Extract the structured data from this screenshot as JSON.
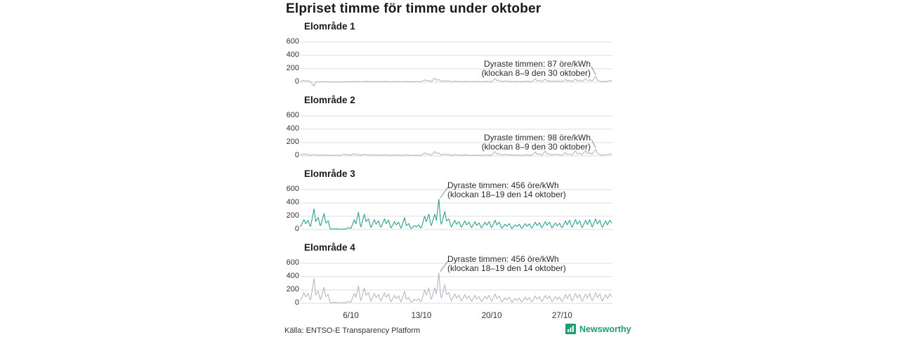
{
  "title": "Elpriset timme för timme under oktober",
  "source": "Källa: ENTSO-E Transparency Platform",
  "branding": {
    "name": "Newsworthy",
    "color": "#1b9e73"
  },
  "colors": {
    "line_gray": "#b5b7c4",
    "line_teal": "#2aa092",
    "gridline": "#dddddd",
    "tick_text": "#333333",
    "annotation_leader": "#8a8a8a",
    "title_text": "#1a1a1a"
  },
  "chart_data": {
    "type": "line",
    "title": "Elpriset timme för timme under oktober",
    "unit": "öre/kWh",
    "x_axis": "Dates in October (hourly series, hour 0 = 1 Oct 00:00)",
    "total_hours": 744,
    "xticks": [
      {
        "hour": 120,
        "label": "6/10"
      },
      {
        "hour": 288,
        "label": "13/10"
      },
      {
        "hour": 456,
        "label": "20/10"
      },
      {
        "hour": 624,
        "label": "27/10"
      }
    ],
    "yticks": [
      600,
      400,
      200,
      0
    ],
    "ylim": [
      -70,
      660
    ],
    "grid": true,
    "sample_hour_offsets": [
      0,
      8,
      12,
      18,
      22
    ],
    "panels": [
      {
        "title": "Elområde 1",
        "line_color_key": "line_gray",
        "annotation": {
          "line1": "Dyraste timmen: 87 öre/kWh",
          "line2": "(klockan 8–9 den 30 oktober)",
          "align": "right"
        },
        "peak": {
          "value": 87,
          "day": 30,
          "hour": 8
        },
        "values": [
          10,
          28,
          15,
          22,
          8,
          5,
          -60,
          2,
          5,
          3,
          3,
          8,
          5,
          6,
          4,
          2,
          5,
          4,
          5,
          3,
          3,
          6,
          5,
          8,
          4,
          4,
          10,
          6,
          8,
          5,
          5,
          12,
          8,
          10,
          5,
          4,
          10,
          7,
          9,
          5,
          5,
          12,
          8,
          10,
          6,
          4,
          10,
          6,
          8,
          5,
          5,
          10,
          7,
          9,
          5,
          4,
          8,
          6,
          8,
          4,
          8,
          35,
          20,
          25,
          10,
          12,
          60,
          30,
          40,
          15,
          10,
          25,
          15,
          20,
          8,
          6,
          15,
          10,
          12,
          6,
          5,
          12,
          8,
          10,
          5,
          5,
          10,
          7,
          9,
          5,
          5,
          12,
          8,
          10,
          6,
          10,
          55,
          25,
          30,
          12,
          8,
          20,
          12,
          15,
          8,
          5,
          12,
          8,
          10,
          6,
          6,
          15,
          10,
          12,
          6,
          10,
          50,
          20,
          25,
          10,
          12,
          45,
          18,
          22,
          10,
          8,
          20,
          12,
          15,
          8,
          10,
          40,
          18,
          25,
          12,
          12,
          45,
          20,
          28,
          12,
          15,
          50,
          25,
          35,
          18,
          20,
          87,
          30,
          15,
          8,
          5,
          15,
          10,
          25,
          20
        ]
      },
      {
        "title": "Elområde 2",
        "line_color_key": "line_gray",
        "annotation": {
          "line1": "Dyraste timmen: 98 öre/kWh",
          "line2": "(klockan 8–9 den 30 oktober)",
          "align": "right"
        },
        "peak": {
          "value": 98,
          "day": 30,
          "hour": 8
        },
        "values": [
          12,
          30,
          18,
          25,
          10,
          8,
          20,
          12,
          15,
          8,
          6,
          15,
          10,
          12,
          6,
          5,
          12,
          8,
          10,
          5,
          8,
          30,
          15,
          18,
          8,
          10,
          35,
          18,
          20,
          10,
          8,
          25,
          15,
          18,
          8,
          6,
          18,
          12,
          14,
          7,
          8,
          20,
          12,
          15,
          8,
          6,
          15,
          10,
          12,
          6,
          6,
          16,
          10,
          12,
          6,
          5,
          12,
          8,
          10,
          5,
          10,
          45,
          25,
          30,
          12,
          15,
          65,
          35,
          45,
          18,
          12,
          30,
          18,
          22,
          10,
          8,
          18,
          12,
          15,
          8,
          6,
          15,
          10,
          12,
          6,
          6,
          14,
          9,
          11,
          6,
          7,
          16,
          10,
          13,
          7,
          12,
          65,
          30,
          35,
          15,
          10,
          25,
          15,
          18,
          10,
          7,
          15,
          10,
          12,
          7,
          8,
          18,
          12,
          14,
          8,
          12,
          60,
          25,
          30,
          12,
          15,
          70,
          28,
          32,
          14,
          10,
          25,
          15,
          18,
          10,
          12,
          50,
          22,
          30,
          15,
          15,
          75,
          30,
          40,
          18,
          20,
          80,
          35,
          50,
          25,
          25,
          98,
          40,
          20,
          10,
          8,
          20,
          15,
          30,
          25
        ]
      },
      {
        "title": "Elområde 3",
        "line_color_key": "line_teal",
        "annotation": {
          "line1": "Dyraste timmen: 456 öre/kWh",
          "line2": "(klockan 18–19 den 14 oktober)",
          "align": "left"
        },
        "peak": {
          "value": 456,
          "day": 14,
          "hour": 18
        },
        "values": [
          45,
          150,
          90,
          140,
          60,
          50,
          310,
          120,
          180,
          70,
          60,
          240,
          100,
          130,
          20,
          5,
          15,
          8,
          12,
          5,
          3,
          10,
          8,
          30,
          20,
          15,
          150,
          90,
          260,
          80,
          40,
          230,
          120,
          160,
          60,
          30,
          150,
          80,
          130,
          50,
          35,
          160,
          90,
          140,
          45,
          25,
          120,
          70,
          110,
          40,
          20,
          180,
          60,
          90,
          30,
          15,
          60,
          40,
          70,
          25,
          30,
          200,
          120,
          230,
          90,
          60,
          230,
          140,
          456,
          120,
          80,
          270,
          130,
          160,
          60,
          40,
          140,
          80,
          120,
          50,
          35,
          130,
          70,
          110,
          45,
          30,
          120,
          60,
          100,
          40,
          25,
          110,
          65,
          120,
          45,
          30,
          140,
          70,
          110,
          40,
          20,
          80,
          50,
          90,
          35,
          15,
          70,
          45,
          80,
          30,
          20,
          90,
          50,
          85,
          30,
          25,
          110,
          60,
          100,
          40,
          30,
          120,
          65,
          110,
          45,
          25,
          100,
          55,
          95,
          40,
          30,
          130,
          70,
          140,
          55,
          35,
          150,
          80,
          130,
          50,
          30,
          140,
          75,
          150,
          60,
          40,
          160,
          85,
          140,
          55,
          35,
          130,
          70,
          140,
          100
        ]
      },
      {
        "title": "Elområde 4",
        "line_color_key": "line_gray",
        "annotation": {
          "line1": "Dyraste timmen: 456 öre/kWh",
          "line2": "(klockan 18–19 den 14 oktober)",
          "align": "left"
        },
        "peak": {
          "value": 456,
          "day": 14,
          "hour": 18
        },
        "values": [
          50,
          160,
          95,
          150,
          65,
          55,
          370,
          125,
          185,
          70,
          60,
          240,
          100,
          130,
          20,
          5,
          15,
          8,
          12,
          5,
          3,
          10,
          8,
          30,
          20,
          15,
          150,
          90,
          260,
          80,
          40,
          230,
          120,
          160,
          60,
          30,
          150,
          80,
          130,
          50,
          35,
          160,
          90,
          140,
          45,
          25,
          120,
          70,
          110,
          40,
          20,
          180,
          60,
          90,
          30,
          15,
          60,
          40,
          70,
          25,
          30,
          200,
          120,
          230,
          90,
          60,
          230,
          140,
          456,
          120,
          80,
          280,
          130,
          160,
          60,
          40,
          140,
          80,
          120,
          50,
          35,
          130,
          70,
          110,
          45,
          30,
          120,
          60,
          100,
          40,
          25,
          110,
          65,
          120,
          45,
          30,
          140,
          70,
          110,
          40,
          20,
          80,
          50,
          90,
          35,
          15,
          70,
          45,
          80,
          30,
          20,
          90,
          50,
          85,
          30,
          25,
          110,
          60,
          100,
          40,
          30,
          120,
          65,
          110,
          45,
          25,
          100,
          55,
          95,
          40,
          30,
          130,
          70,
          140,
          55,
          35,
          150,
          80,
          130,
          50,
          30,
          140,
          75,
          150,
          60,
          40,
          160,
          85,
          140,
          55,
          35,
          130,
          70,
          140,
          100
        ]
      }
    ]
  }
}
